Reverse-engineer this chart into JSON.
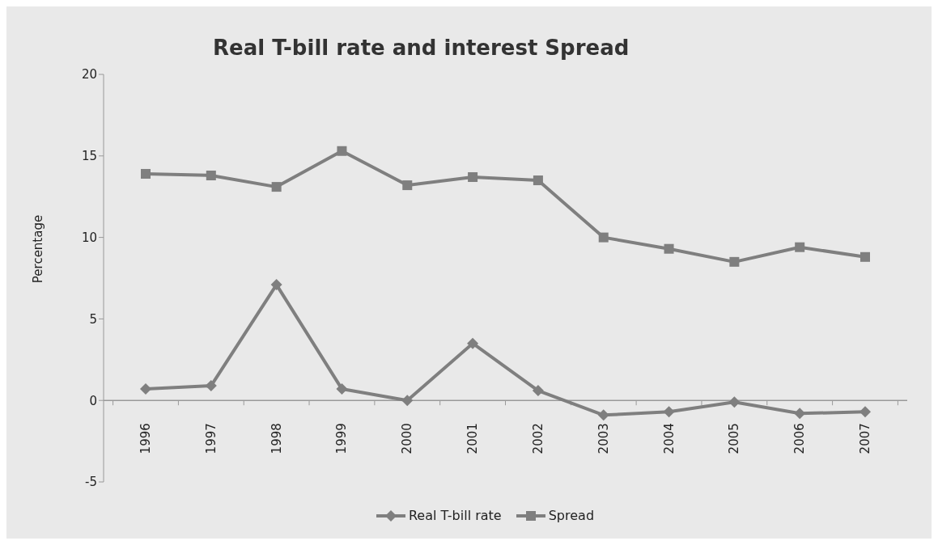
{
  "chart_data": {
    "type": "line",
    "title": "Real T-bill rate and interest Spread",
    "ylabel": "Percentage",
    "categories": [
      "1996",
      "1997",
      "1998",
      "1999",
      "2000",
      "2001",
      "2002",
      "2003",
      "2004",
      "2005",
      "2006",
      "2007"
    ],
    "series": [
      {
        "name": "Real T-bill rate",
        "color": "#7f7f7f",
        "marker": "diamond",
        "values": [
          0.7,
          0.9,
          7.1,
          0.7,
          0,
          3.5,
          0.6,
          -0.9,
          -0.7,
          -0.1,
          -0.8,
          -0.7
        ]
      },
      {
        "name": "Spread",
        "color": "#7f7f7f",
        "marker": "square",
        "values": [
          13.9,
          13.8,
          13.1,
          15.3,
          13.2,
          13.7,
          13.5,
          10.0,
          9.3,
          8.5,
          9.4,
          8.8
        ]
      }
    ],
    "ylim": [
      -5,
      20
    ],
    "yticks": [
      -5,
      0,
      5,
      10,
      15,
      20
    ],
    "grid": false,
    "legend": "bottom"
  }
}
